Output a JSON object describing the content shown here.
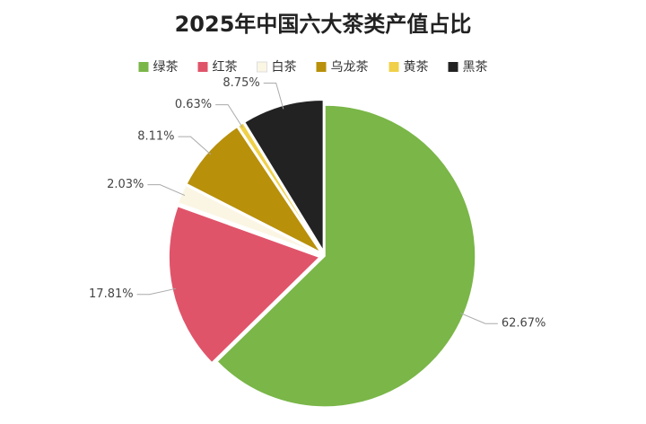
{
  "chart_data": {
    "type": "pie",
    "title": "2025年中国六大茶类产值占比",
    "categories": [
      "绿茶",
      "红茶",
      "白茶",
      "乌龙茶",
      "黄茶",
      "黑茶"
    ],
    "values": [
      62.67,
      17.81,
      2.03,
      8.11,
      0.63,
      8.75
    ],
    "value_labels": [
      "62.67%",
      "17.81%",
      "2.03%",
      "8.11%",
      "0.63%",
      "8.75%"
    ],
    "colors": [
      "#7ab648",
      "#e0546a",
      "#fbf6e4",
      "#b8900a",
      "#f0d048",
      "#222222"
    ]
  }
}
